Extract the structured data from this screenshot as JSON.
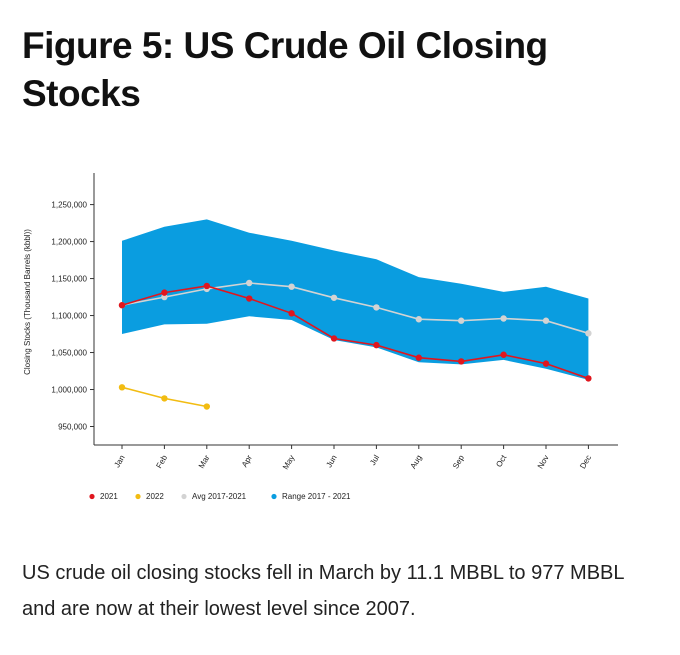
{
  "page": {
    "title": "Figure 5: US Crude Oil Closing Stocks",
    "caption": "US crude oil closing stocks fell in March by 11.1 MBBL to 977 MBBL and are now at their lowest level since 2007."
  },
  "chart_data": {
    "type": "line",
    "title": "Figure 5: US Crude Oil Closing Stocks",
    "xlabel": "",
    "ylabel": "Closing Stocks (Thousand Barrels (kbbl))",
    "categories": [
      "Jan",
      "Feb",
      "Mar",
      "Apr",
      "May",
      "Jun",
      "Jul",
      "Aug",
      "Sep",
      "Oct",
      "Nov",
      "Dec"
    ],
    "yticks": [
      950000,
      1000000,
      1050000,
      1100000,
      1150000,
      1200000,
      1250000
    ],
    "ytick_labels": [
      "950,000",
      "1,000,000",
      "1,050,000",
      "1,100,000",
      "1,150,000",
      "1,200,000",
      "1,250,000"
    ],
    "ylim": [
      925000,
      1290000
    ],
    "grid": false,
    "legend_position": "bottom-left",
    "range": {
      "name": "Range 2017 - 2021",
      "color": "#0a9de0",
      "high": [
        1201000,
        1220000,
        1230000,
        1212000,
        1201000,
        1188000,
        1176000,
        1152000,
        1143000,
        1132000,
        1139000,
        1123000
      ],
      "low": [
        1075000,
        1088000,
        1089000,
        1099000,
        1094000,
        1067000,
        1057000,
        1037000,
        1034000,
        1040000,
        1028000,
        1013000
      ]
    },
    "series": [
      {
        "name": "2021",
        "color": "#e0161e",
        "values": [
          1114000,
          1131000,
          1140000,
          1123000,
          1103000,
          1069000,
          1060000,
          1043000,
          1038000,
          1047000,
          1035000,
          1015000
        ]
      },
      {
        "name": "2022",
        "color": "#f2bc12",
        "values": [
          1003000,
          988000,
          977000,
          null,
          null,
          null,
          null,
          null,
          null,
          null,
          null,
          null
        ]
      },
      {
        "name": "Avg 2017-2021",
        "color": "#d3d3d3",
        "values": [
          1114000,
          1125000,
          1136000,
          1144000,
          1139000,
          1124000,
          1111000,
          1095000,
          1093000,
          1096000,
          1093000,
          1076000
        ]
      }
    ]
  }
}
